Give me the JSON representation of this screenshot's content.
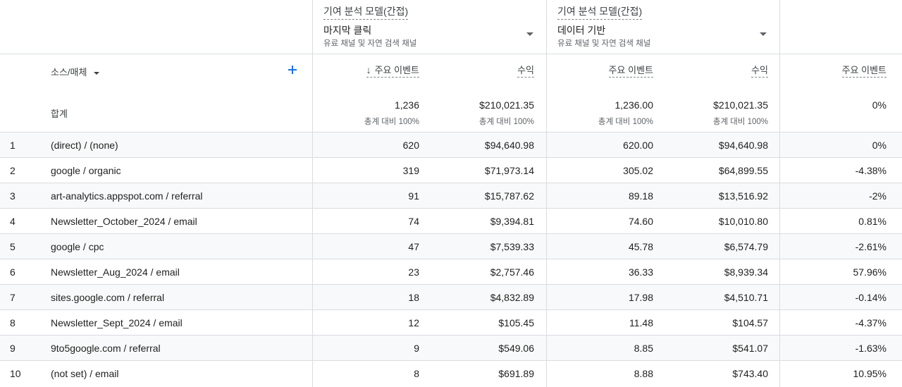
{
  "models": [
    {
      "title": "기여 분석 모델(간접)",
      "selected": "마지막 클릭",
      "description": "유료 채널 및 자연 검색 채널"
    },
    {
      "title": "기여 분석 모델(간접)",
      "selected": "데이터 기반",
      "description": "유료 채널 및 자연 검색 채널"
    }
  ],
  "dimension_header": "소스/매체",
  "metric_headers": [
    "주요 이벤트",
    "수익",
    "주요 이벤트",
    "수익",
    "주요 이벤트"
  ],
  "sort_icon": "arrow-down-icon",
  "totals": {
    "label": "합계",
    "values": [
      "1,236",
      "$210,021.35",
      "1,236.00",
      "$210,021.35",
      "0%"
    ],
    "subs": [
      "총계 대비 100%",
      "총계 대비 100%",
      "총계 대비 100%",
      "총계 대비 100%"
    ]
  },
  "rows": [
    {
      "rank": "1",
      "dim": "(direct) / (none)",
      "v": [
        "620",
        "$94,640.98",
        "620.00",
        "$94,640.98",
        "0%"
      ]
    },
    {
      "rank": "2",
      "dim": "google / organic",
      "v": [
        "319",
        "$71,973.14",
        "305.02",
        "$64,899.55",
        "-4.38%"
      ]
    },
    {
      "rank": "3",
      "dim": "art-analytics.appspot.com / referral",
      "v": [
        "91",
        "$15,787.62",
        "89.18",
        "$13,516.92",
        "-2%"
      ]
    },
    {
      "rank": "4",
      "dim": "Newsletter_October_2024 / email",
      "v": [
        "74",
        "$9,394.81",
        "74.60",
        "$10,010.80",
        "0.81%"
      ]
    },
    {
      "rank": "5",
      "dim": "google / cpc",
      "v": [
        "47",
        "$7,539.33",
        "45.78",
        "$6,574.79",
        "-2.61%"
      ]
    },
    {
      "rank": "6",
      "dim": "Newsletter_Aug_2024 / email",
      "v": [
        "23",
        "$2,757.46",
        "36.33",
        "$8,939.34",
        "57.96%"
      ]
    },
    {
      "rank": "7",
      "dim": "sites.google.com / referral",
      "v": [
        "18",
        "$4,832.89",
        "17.98",
        "$4,510.71",
        "-0.14%"
      ]
    },
    {
      "rank": "8",
      "dim": "Newsletter_Sept_2024 / email",
      "v": [
        "12",
        "$105.45",
        "11.48",
        "$104.57",
        "-4.37%"
      ]
    },
    {
      "rank": "9",
      "dim": "9to5google.com / referral",
      "v": [
        "9",
        "$549.06",
        "8.85",
        "$541.07",
        "-1.63%"
      ]
    },
    {
      "rank": "10",
      "dim": "(not set) / email",
      "v": [
        "8",
        "$691.89",
        "8.88",
        "$743.40",
        "10.95%"
      ]
    }
  ]
}
